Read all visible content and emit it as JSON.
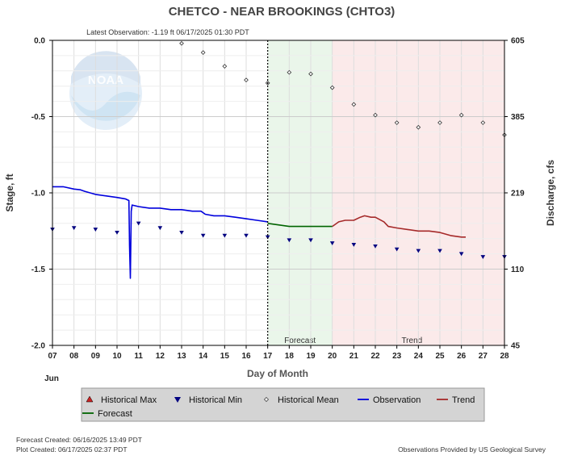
{
  "chart_data": {
    "type": "line",
    "title": "CHETCO - NEAR BROOKINGS  (CHTO3)",
    "subtitle": "Latest Observation: -1.19 ft 06/17/2025 01:30 PDT",
    "xlabel": "Day of Month",
    "x_month_label": "Jun",
    "ylabel_left": "Stage, ft",
    "ylabel_right": "Discharge, cfs",
    "xlim": [
      7,
      28
    ],
    "ylim": [
      -2.0,
      0.0
    ],
    "x_ticks": [
      "07",
      "08",
      "09",
      "10",
      "11",
      "12",
      "13",
      "14",
      "15",
      "16",
      "17",
      "18",
      "19",
      "20",
      "21",
      "22",
      "23",
      "24",
      "25",
      "26",
      "27",
      "28"
    ],
    "y_ticks": [
      "0.0",
      "-0.5",
      "-1.0",
      "-1.5",
      "-2.0"
    ],
    "y_tick_values": [
      0.0,
      -0.5,
      -1.0,
      -1.5,
      -2.0
    ],
    "right_ticks": [
      {
        "label": "605",
        "stage": 0.0
      },
      {
        "label": "385",
        "stage": -0.5
      },
      {
        "label": "219",
        "stage": -1.0
      },
      {
        "label": "110",
        "stage": -1.5
      },
      {
        "label": "45",
        "stage": -2.0
      }
    ],
    "grid": true,
    "regions": [
      {
        "name": "Forecast",
        "x0": 17.0,
        "x1": 20.0,
        "color": "#eaf6ea"
      },
      {
        "name": "Trend",
        "x0": 20.0,
        "x1": 28.0,
        "color": "#fbeaea"
      }
    ],
    "now_x": 17.0,
    "series": [
      {
        "name": "Observation",
        "color": "#0000dd",
        "points": [
          [
            7.0,
            -0.96
          ],
          [
            7.5,
            -0.96
          ],
          [
            8.0,
            -0.975
          ],
          [
            8.3,
            -0.98
          ],
          [
            8.5,
            -0.99
          ],
          [
            9.0,
            -1.01
          ],
          [
            9.5,
            -1.02
          ],
          [
            10.0,
            -1.03
          ],
          [
            10.4,
            -1.04
          ],
          [
            10.55,
            -1.05
          ],
          [
            10.58,
            -1.35
          ],
          [
            10.62,
            -1.56
          ],
          [
            10.66,
            -1.12
          ],
          [
            10.7,
            -1.08
          ],
          [
            11.0,
            -1.09
          ],
          [
            11.5,
            -1.1
          ],
          [
            12.0,
            -1.1
          ],
          [
            12.5,
            -1.11
          ],
          [
            13.0,
            -1.11
          ],
          [
            13.5,
            -1.12
          ],
          [
            13.9,
            -1.12
          ],
          [
            14.1,
            -1.14
          ],
          [
            14.5,
            -1.15
          ],
          [
            15.0,
            -1.15
          ],
          [
            15.5,
            -1.16
          ],
          [
            16.0,
            -1.17
          ],
          [
            16.5,
            -1.18
          ],
          [
            17.0,
            -1.19
          ]
        ]
      },
      {
        "name": "Forecast",
        "color": "#006400",
        "points": [
          [
            17.0,
            -1.2
          ],
          [
            17.5,
            -1.21
          ],
          [
            18.0,
            -1.22
          ],
          [
            18.5,
            -1.22
          ],
          [
            19.0,
            -1.22
          ],
          [
            19.5,
            -1.22
          ],
          [
            20.0,
            -1.22
          ]
        ]
      },
      {
        "name": "Trend",
        "color": "#a52a2a",
        "points": [
          [
            20.0,
            -1.22
          ],
          [
            20.3,
            -1.19
          ],
          [
            20.6,
            -1.18
          ],
          [
            21.0,
            -1.18
          ],
          [
            21.3,
            -1.16
          ],
          [
            21.5,
            -1.15
          ],
          [
            21.8,
            -1.16
          ],
          [
            22.0,
            -1.16
          ],
          [
            22.4,
            -1.19
          ],
          [
            22.6,
            -1.22
          ],
          [
            23.0,
            -1.23
          ],
          [
            23.5,
            -1.24
          ],
          [
            24.0,
            -1.25
          ],
          [
            24.5,
            -1.25
          ],
          [
            25.0,
            -1.26
          ],
          [
            25.5,
            -1.28
          ],
          [
            26.0,
            -1.29
          ],
          [
            26.2,
            -1.29
          ]
        ]
      },
      {
        "name": "Historical Mean",
        "marker": "diamond",
        "points": [
          [
            13.0,
            -0.02
          ],
          [
            14.0,
            -0.08
          ],
          [
            15.0,
            -0.17
          ],
          [
            16.0,
            -0.26
          ],
          [
            17.0,
            -0.28
          ],
          [
            18.0,
            -0.21
          ],
          [
            19.0,
            -0.22
          ],
          [
            20.0,
            -0.31
          ],
          [
            21.0,
            -0.42
          ],
          [
            22.0,
            -0.49
          ],
          [
            23.0,
            -0.54
          ],
          [
            24.0,
            -0.57
          ],
          [
            25.0,
            -0.54
          ],
          [
            26.0,
            -0.49
          ],
          [
            27.0,
            -0.54
          ],
          [
            28.0,
            -0.62
          ]
        ]
      },
      {
        "name": "Historical Min",
        "marker": "triangle-down",
        "color": "#000080",
        "points": [
          [
            7.0,
            -1.24
          ],
          [
            8.0,
            -1.23
          ],
          [
            9.0,
            -1.24
          ],
          [
            10.0,
            -1.26
          ],
          [
            11.0,
            -1.2
          ],
          [
            12.0,
            -1.23
          ],
          [
            13.0,
            -1.26
          ],
          [
            14.0,
            -1.28
          ],
          [
            15.0,
            -1.28
          ],
          [
            16.0,
            -1.28
          ],
          [
            17.0,
            -1.29
          ],
          [
            18.0,
            -1.31
          ],
          [
            19.0,
            -1.31
          ],
          [
            20.0,
            -1.33
          ],
          [
            21.0,
            -1.34
          ],
          [
            22.0,
            -1.35
          ],
          [
            23.0,
            -1.37
          ],
          [
            24.0,
            -1.38
          ],
          [
            25.0,
            -1.38
          ],
          [
            26.0,
            -1.4
          ],
          [
            27.0,
            -1.42
          ],
          [
            28.0,
            -1.42
          ]
        ]
      }
    ],
    "legend": [
      {
        "name": "Historical Max",
        "marker": "triangle-up",
        "color": "#cc2222"
      },
      {
        "name": "Historical Min",
        "marker": "triangle-down",
        "color": "#000080"
      },
      {
        "name": "Historical Mean",
        "marker": "diamond",
        "color": "#444444"
      },
      {
        "name": "Observation",
        "marker": "line",
        "color": "#0000dd"
      },
      {
        "name": "Trend",
        "marker": "line",
        "color": "#a52a2a"
      },
      {
        "name": "Forecast",
        "marker": "line",
        "color": "#006400"
      }
    ],
    "legend_placement": "bottom"
  },
  "footer": {
    "forecast_created": "Forecast Created: 06/16/2025 13:49 PDT",
    "plot_created": "Plot Created: 06/17/2025 02:37 PDT",
    "credit": "Observations Provided by US Geological Survey"
  },
  "logo": {
    "text": "NOAA"
  }
}
